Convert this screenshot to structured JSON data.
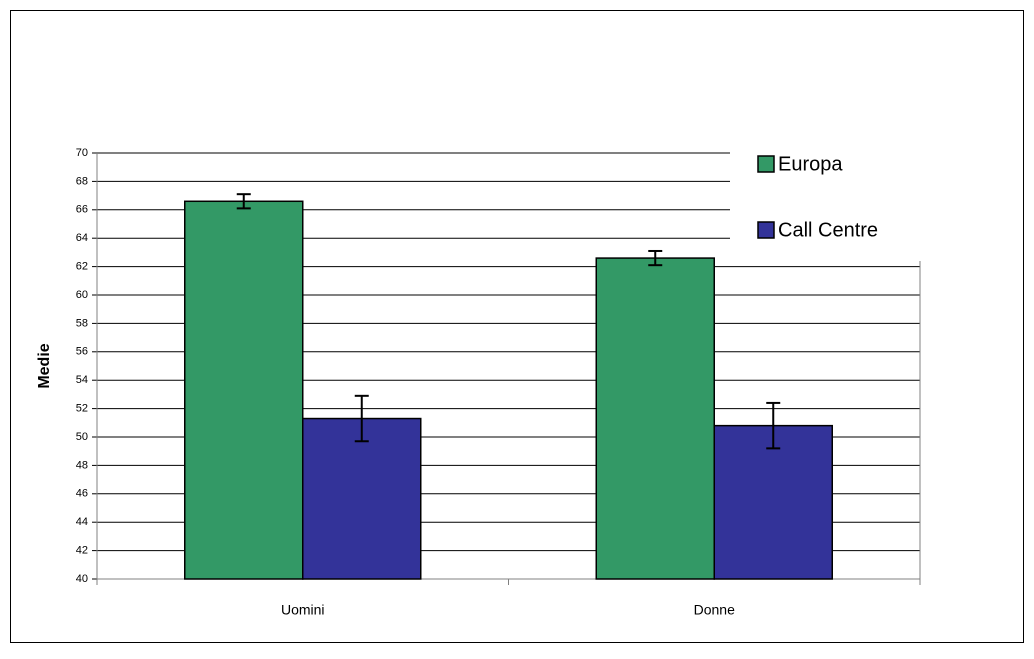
{
  "chart_data": {
    "type": "bar",
    "categories": [
      "Uomini",
      "Donne"
    ],
    "series": [
      {
        "name": "Europa",
        "color": "#339966",
        "values": [
          66.6,
          62.6
        ],
        "errors": [
          0.5,
          0.5
        ]
      },
      {
        "name": "Call Centre",
        "color": "#333399",
        "values": [
          51.3,
          50.8
        ],
        "errors": [
          1.6,
          1.6
        ]
      }
    ],
    "ylabel": "Medie",
    "ylim": [
      40,
      70
    ],
    "yticks": [
      40,
      42,
      44,
      46,
      48,
      50,
      52,
      54,
      56,
      58,
      60,
      62,
      64,
      66,
      68,
      70
    ],
    "grid": true,
    "legend": "top right"
  }
}
